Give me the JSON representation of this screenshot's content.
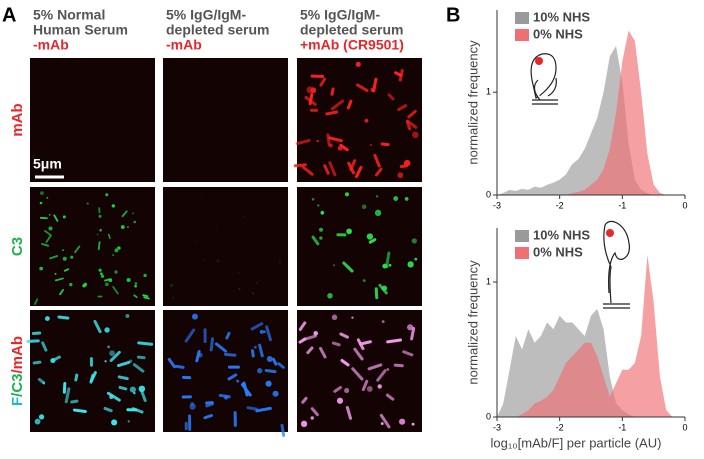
{
  "panel_labels": [
    "A",
    "B"
  ],
  "figure_a": {
    "columns": [
      {
        "title_lines": [
          "5% Normal",
          "Human Serum"
        ],
        "condition": "-mAb"
      },
      {
        "title_lines": [
          "5% IgG/IgM-",
          "depleted serum"
        ],
        "condition": "-mAb"
      },
      {
        "title_lines": [
          "5% IgG/IgM-",
          "depleted serum"
        ],
        "condition": "+mAb (CR9501)"
      }
    ],
    "rows": [
      {
        "parts": [
          {
            "text": "mAb",
            "color": "#e8262b"
          }
        ]
      },
      {
        "parts": [
          {
            "text": "C3",
            "color": "#19b24b"
          }
        ]
      },
      {
        "parts": [
          {
            "text": "F",
            "color": "#1fb8d0"
          },
          {
            "text": "/C3",
            "color": "#19b24b"
          },
          {
            "text": "/mAb",
            "color": "#e8262b"
          }
        ]
      }
    ],
    "scale_bar": "5μm"
  },
  "chart_data": [
    {
      "type": "area",
      "y_label": "normalized frequency",
      "x": [
        -3,
        -2.9,
        -2.8,
        -2.7,
        -2.6,
        -2.5,
        -2.4,
        -2.3,
        -2.2,
        -2.1,
        -2,
        -1.9,
        -1.8,
        -1.7,
        -1.6,
        -1.5,
        -1.4,
        -1.3,
        -1.2,
        -1.1,
        -1,
        -0.9,
        -0.8,
        -0.7,
        -0.6,
        -0.5,
        -0.4,
        -0.3,
        -0.2,
        -0.1,
        0
      ],
      "series": [
        {
          "name": "10% NHS",
          "color": "#9a9a9a",
          "values": [
            0,
            0.02,
            0.05,
            0.04,
            0.06,
            0.05,
            0.08,
            0.07,
            0.1,
            0.12,
            0.15,
            0.2,
            0.3,
            0.35,
            0.45,
            0.6,
            0.75,
            1.0,
            1.35,
            1.45,
            1.1,
            0.5,
            0.15,
            0.05,
            0.02,
            0,
            0,
            0,
            0,
            0,
            0
          ]
        },
        {
          "name": "0% NHS",
          "color": "#ef6f73",
          "values": [
            0,
            0,
            0,
            0,
            0,
            0,
            0,
            0,
            0,
            0,
            0,
            0,
            0.02,
            0.03,
            0.05,
            0.1,
            0.15,
            0.25,
            0.45,
            0.8,
            1.3,
            1.6,
            1.5,
            1.0,
            0.4,
            0.1,
            0.02,
            0,
            0,
            0,
            0
          ]
        }
      ],
      "xlim": [
        -3,
        0
      ],
      "ylim": [
        0,
        1.8
      ],
      "xticks": [
        -3,
        -2,
        -1,
        0
      ],
      "yticks": [
        0,
        1
      ],
      "legend": "upper-left"
    },
    {
      "type": "area",
      "y_label": "normalized frequency",
      "x_label": "log₁₀[mAb/F] per particle (AU)",
      "x": [
        -3,
        -2.9,
        -2.8,
        -2.7,
        -2.6,
        -2.5,
        -2.4,
        -2.3,
        -2.2,
        -2.1,
        -2,
        -1.9,
        -1.8,
        -1.7,
        -1.6,
        -1.5,
        -1.4,
        -1.3,
        -1.2,
        -1.1,
        -1,
        -0.9,
        -0.8,
        -0.7,
        -0.6,
        -0.5,
        -0.4,
        -0.3,
        -0.2,
        -0.1,
        0
      ],
      "series": [
        {
          "name": "10% NHS",
          "color": "#9a9a9a",
          "values": [
            0,
            0.1,
            0.35,
            0.6,
            0.5,
            0.65,
            0.55,
            0.6,
            0.7,
            0.65,
            0.75,
            0.7,
            0.7,
            0.65,
            0.6,
            0.75,
            0.8,
            0.65,
            0.3,
            0.1,
            0.05,
            0.02,
            0,
            0,
            0,
            0,
            0,
            0,
            0,
            0,
            0
          ]
        },
        {
          "name": "0% NHS",
          "color": "#ef6f73",
          "values": [
            0,
            0,
            0,
            0,
            0.02,
            0.05,
            0.1,
            0.12,
            0.15,
            0.2,
            0.3,
            0.4,
            0.45,
            0.5,
            0.55,
            0.55,
            0.45,
            0.3,
            0.15,
            0.25,
            0.35,
            0.35,
            0.4,
            0.6,
            1.2,
            0.85,
            0.3,
            0.05,
            0,
            0,
            0
          ]
        }
      ],
      "xlim": [
        -3,
        0
      ],
      "ylim": [
        0,
        1.4
      ],
      "xticks": [
        -3,
        -2,
        -1,
        0
      ],
      "yticks": [
        0,
        1
      ],
      "legend": "upper-left"
    }
  ]
}
